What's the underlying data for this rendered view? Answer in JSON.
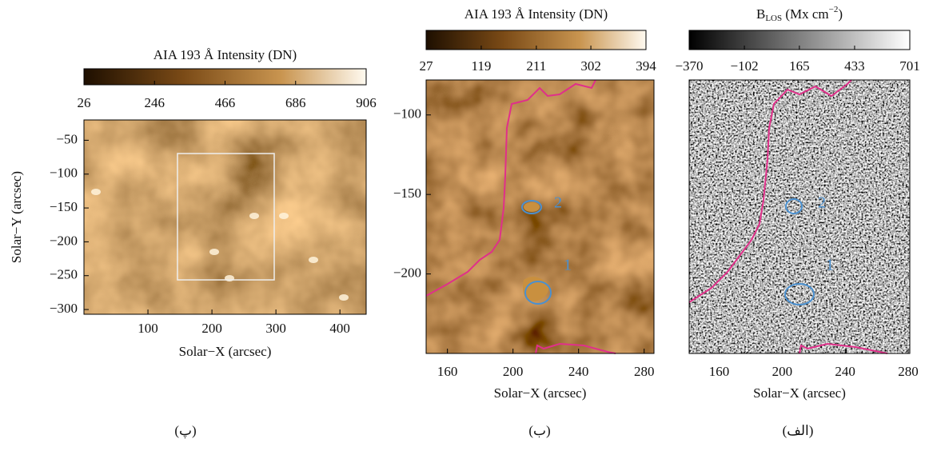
{
  "panels": [
    {
      "caption": "(پ)",
      "colorbar_title": "AIA 193 Å Intensity (DN)",
      "colormap": "brown",
      "clim": [
        26,
        906
      ],
      "colorbar_ticks": [
        26,
        246,
        466,
        686,
        906
      ],
      "xlabel": "Solar−X (arcsec)",
      "xlim": [
        0,
        441
      ],
      "xticks": [
        100,
        200,
        300,
        400
      ],
      "ylabel": "Solar−Y (arcsec)",
      "ylim": [
        -307,
        -20
      ],
      "yticks": [
        {
          "value": -50,
          "label": "−50"
        },
        {
          "value": -100,
          "label": "−100"
        },
        {
          "value": -150,
          "label": "−150"
        },
        {
          "value": -200,
          "label": "−200"
        },
        {
          "value": -250,
          "label": "−250"
        },
        {
          "value": -300,
          "label": "−300"
        }
      ],
      "annotations": []
    },
    {
      "caption": "(ب)",
      "colorbar_title": "AIA 193 Å Intensity (DN)",
      "colormap": "brown",
      "clim": [
        27,
        394
      ],
      "colorbar_ticks": [
        27,
        119,
        211,
        302,
        394
      ],
      "xlabel": "Solar−X (arcsec)",
      "xlim": [
        147,
        286
      ],
      "xticks": [
        160,
        200,
        240,
        280
      ],
      "ylim": [
        -250,
        -78
      ],
      "yticks": [
        {
          "value": -100,
          "label": "−100"
        },
        {
          "value": -150,
          "label": "−150"
        },
        {
          "value": -200,
          "label": "−200"
        }
      ],
      "annotations": [
        "2",
        "1"
      ]
    },
    {
      "caption": "(الف)",
      "colorbar_title": {
        "base": "B",
        "sub": "LOS",
        "unit": " (Mx cm",
        "sup": "−2",
        "close": ")"
      },
      "colormap": "gray",
      "clim": [
        -370,
        701
      ],
      "colorbar_ticks": [
        {
          "value": -370,
          "label": "−370"
        },
        {
          "value": -102,
          "label": "−102"
        },
        165,
        433,
        701
      ],
      "xlabel": "Solar−X (arcsec)",
      "xlim": [
        141,
        281
      ],
      "xticks": [
        160,
        200,
        240,
        280
      ],
      "ylim": [
        -250,
        -78
      ],
      "yticks": [],
      "annotations": [
        "2",
        "1"
      ]
    }
  ]
}
